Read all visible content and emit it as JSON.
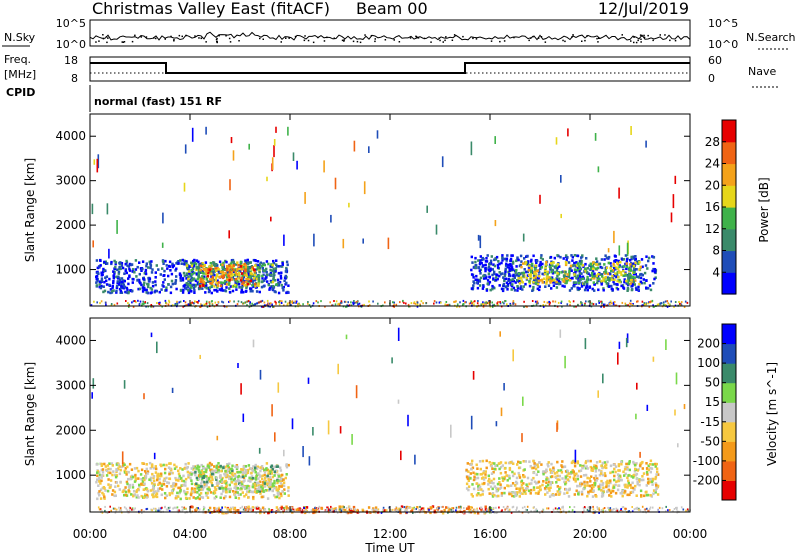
{
  "header": {
    "station": "Christmas Valley East (fitACF)",
    "beam": "Beam 00",
    "date": "12/Jul/2019"
  },
  "noise_panel": {
    "left_label": "N.Sky",
    "right_label": "N.Search",
    "left_ticks": [
      "10^5",
      "10^0"
    ],
    "right_ticks": [
      "10^5",
      "10^0"
    ]
  },
  "freq_panel": {
    "left_label_1": "Freq.",
    "left_label_2": "[MHz]",
    "right_label": "Nave",
    "left_ticks": [
      "18",
      "8"
    ],
    "right_ticks": [
      "60",
      "0"
    ]
  },
  "cpid_panel": {
    "label": "CPID",
    "text": "normal (fast) 151 RF"
  },
  "chart_data": [
    {
      "type": "heatmap",
      "name": "power",
      "ylabel": "Slant Range [km]",
      "ylim": [
        180,
        4500
      ],
      "yticks": [
        1000,
        2000,
        3000,
        4000
      ],
      "xlim": [
        0,
        24
      ],
      "colorbar": {
        "label": "Power [dB]",
        "ticks": [
          "28",
          "24",
          "20",
          "16",
          "12",
          "8",
          "4"
        ],
        "colors": [
          "#0000ff",
          "#1f4db8",
          "#3a8a6a",
          "#3fb24a",
          "#e6d61a",
          "#f4a21a",
          "#f06414",
          "#e60000"
        ]
      },
      "regions": [
        {
          "t0": 0.2,
          "t1": 7.9,
          "r0": 500,
          "r1": 1250,
          "level": 1
        },
        {
          "t0": 3.8,
          "t1": 7.4,
          "r0": 600,
          "r1": 1200,
          "level": 3
        },
        {
          "t0": 4.3,
          "t1": 6.6,
          "r0": 650,
          "r1": 1150,
          "level": 6
        },
        {
          "t0": 15.2,
          "t1": 22.6,
          "r0": 550,
          "r1": 1350,
          "level": 1
        },
        {
          "t0": 17.0,
          "t1": 22.0,
          "r0": 700,
          "r1": 1200,
          "level": 4
        }
      ]
    },
    {
      "type": "heatmap",
      "name": "velocity",
      "ylabel": "Slant Range [km]",
      "xlabel": "Time UT",
      "ylim": [
        180,
        4500
      ],
      "yticks": [
        1000,
        2000,
        3000,
        4000
      ],
      "xlim": [
        0,
        24
      ],
      "xticks": [
        "00:00",
        "04:00",
        "08:00",
        "12:00",
        "16:00",
        "20:00",
        "00:00"
      ],
      "colorbar": {
        "label": "Velocity [m s^-1]",
        "ticks": [
          "200",
          "100",
          "50",
          "15",
          "-15",
          "-50",
          "-100",
          "-200"
        ],
        "colors": [
          "#e60000",
          "#f06414",
          "#f49a1a",
          "#f6c840",
          "#c8c8c8",
          "#7ad84a",
          "#3a8a6a",
          "#1f4db8",
          "#0000ff"
        ]
      },
      "regions": [
        {
          "t0": 0.2,
          "t1": 7.9,
          "r0": 500,
          "r1": 1300,
          "level": 4
        },
        {
          "t0": 4.0,
          "t1": 7.6,
          "r0": 650,
          "r1": 1250,
          "level": 5
        },
        {
          "t0": 15.0,
          "t1": 22.7,
          "r0": 550,
          "r1": 1350,
          "level": 4
        },
        {
          "t0": 4.0,
          "t1": 16.0,
          "r0": 180,
          "r1": 330,
          "level": 2
        }
      ]
    }
  ]
}
